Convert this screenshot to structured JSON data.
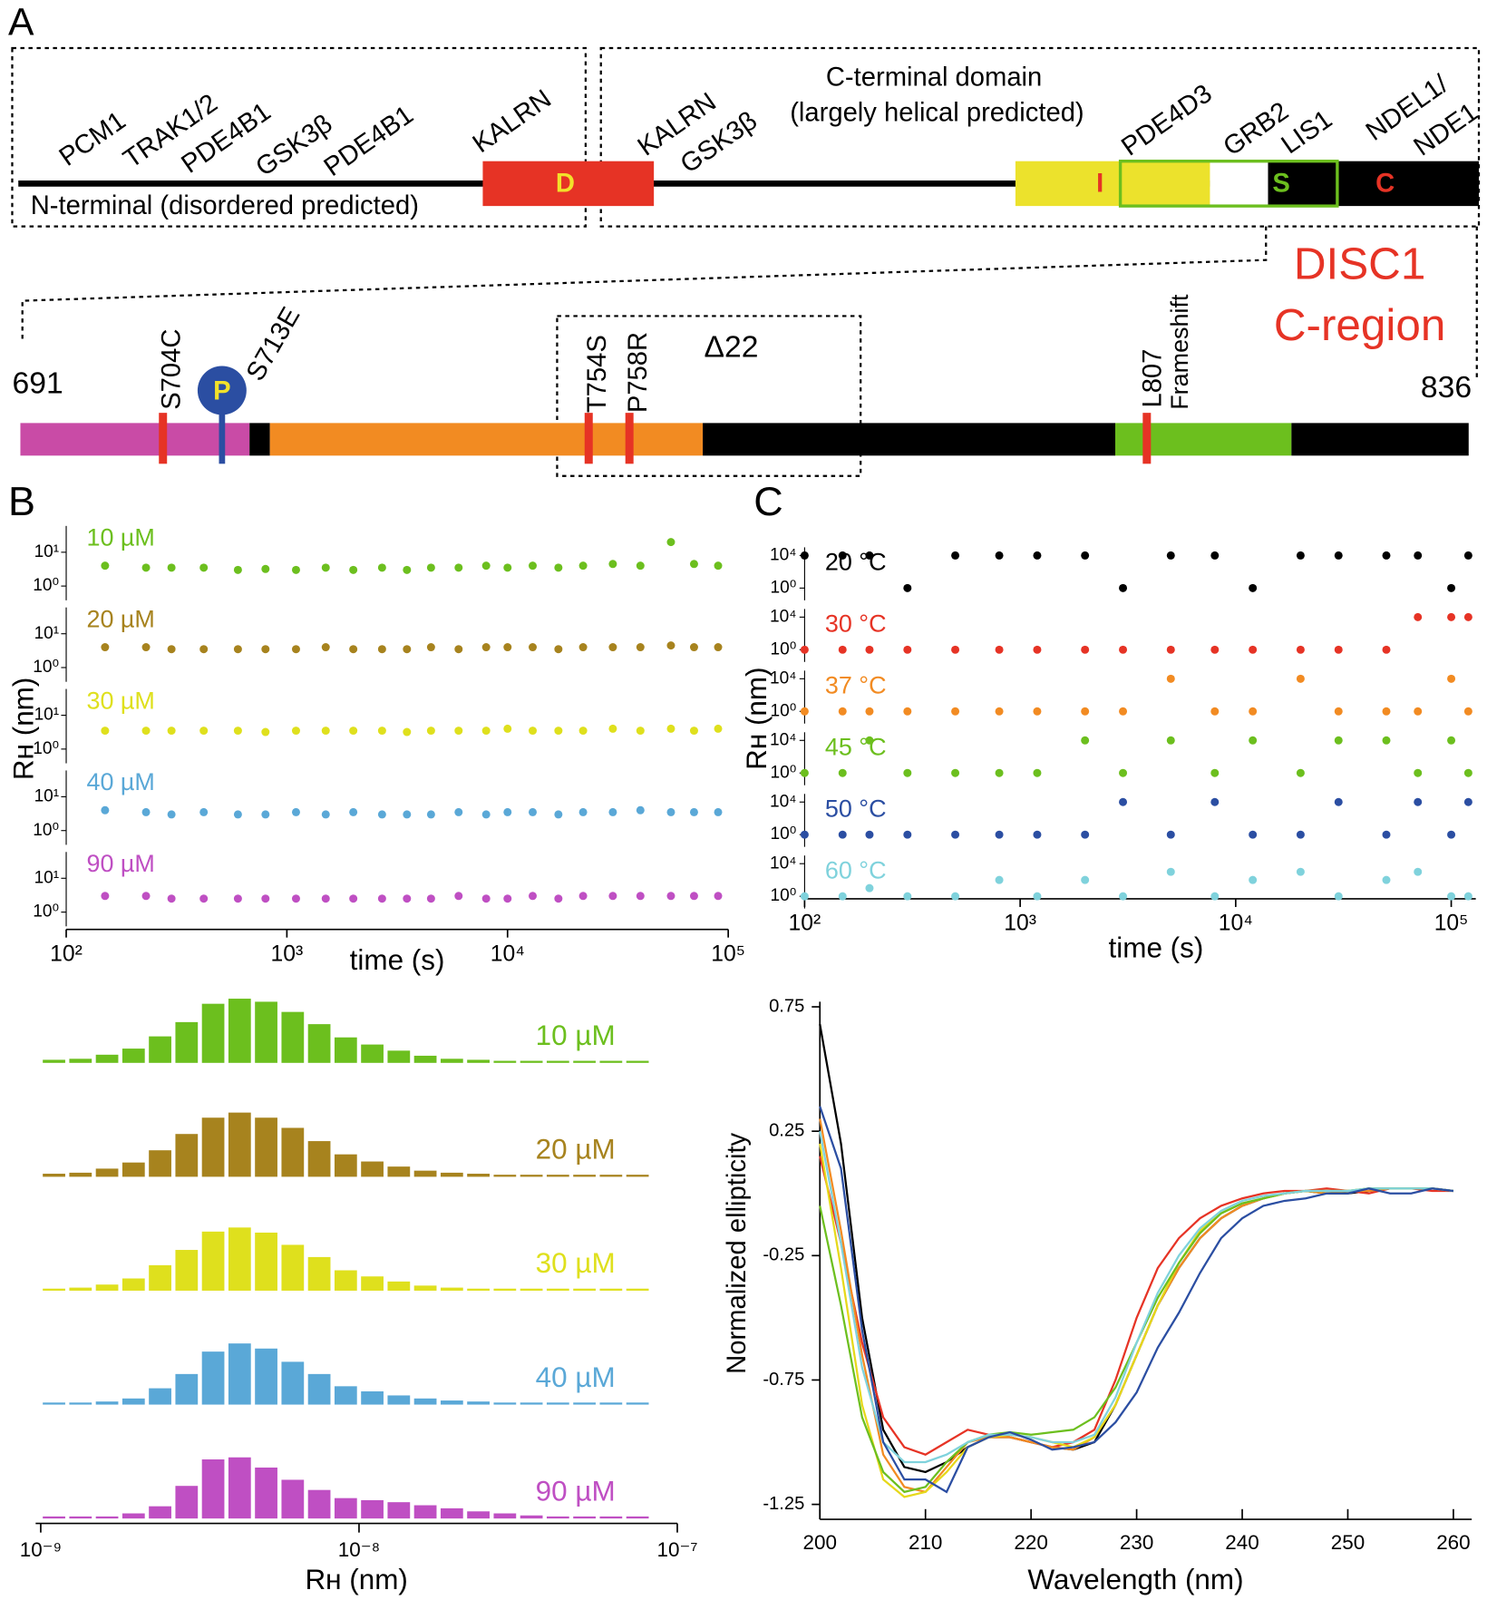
{
  "panel_a": {
    "label": "A",
    "interactors_n": [
      "PCM1",
      "TRAK1/2",
      "PDE4B1",
      "GSK3β",
      "PDE4B1",
      "KALRN"
    ],
    "n_terminal": "N-terminal (disordered predicted)",
    "domain_d": "D",
    "interactors_c": [
      "KALRN",
      "GSK3β",
      "PDE4D3",
      "GRB2",
      "LIS1",
      "NDEL1/",
      "NDE1"
    ],
    "c_terminal": [
      "C-terminal domain",
      "(largely helical predicted)"
    ],
    "domain_i": "I",
    "domain_s": "S",
    "domain_c": "C",
    "title": [
      "DISC1",
      "C-region"
    ],
    "start": "691",
    "end": "836",
    "mutations": [
      "S704C",
      "S713E",
      "T754S",
      "P758R",
      "L807",
      "Frameshift"
    ],
    "phospho": "P",
    "deletion": "Δ22"
  },
  "chart_data": [
    {
      "type": "scatter",
      "panel_label": "B",
      "xlabel": "time (s)",
      "ylabel": "Rʜ (nm)",
      "log_x": true,
      "log_y": true,
      "xlim": [
        100,
        100000
      ],
      "xticks": [
        {
          "value": 100,
          "label": "10²"
        },
        {
          "value": 1000,
          "label": "10³"
        },
        {
          "value": 10000,
          "label": "10⁴"
        },
        {
          "value": 100000,
          "label": "10⁵"
        }
      ],
      "ylim": [
        0.5,
        60
      ],
      "yticks": [
        {
          "value": 1,
          "label": "10⁰"
        },
        {
          "value": 10,
          "label": "10¹"
        }
      ],
      "x": [
        150,
        230,
        300,
        420,
        600,
        800,
        1100,
        1500,
        2000,
        2700,
        3500,
        4500,
        6000,
        8000,
        10000,
        13000,
        17000,
        22000,
        30000,
        40000,
        55000,
        70000,
        90000
      ],
      "series": [
        {
          "name": "10 µM",
          "color": "#6cbf1e",
          "values": [
            4,
            3.5,
            3.5,
            3.5,
            3,
            3.2,
            3,
            3.5,
            3,
            3.5,
            3,
            3.5,
            3.5,
            4,
            3.5,
            4,
            3.5,
            4,
            4.5,
            4,
            20,
            4.5,
            4
          ]
        },
        {
          "name": "20 µM",
          "color": "#a7831e",
          "values": [
            4,
            4,
            3.5,
            3.5,
            3.5,
            3.5,
            3.5,
            4,
            3.5,
            3.5,
            3.5,
            4,
            3.5,
            4,
            4,
            4,
            3.5,
            4,
            4,
            4,
            4.5,
            4,
            4
          ]
        },
        {
          "name": "30 µM",
          "color": "#dfe01d",
          "values": [
            3.5,
            3.5,
            3.5,
            3.5,
            3.5,
            3.2,
            3.5,
            3.5,
            3.5,
            3.5,
            3.2,
            3.5,
            3.5,
            3.5,
            4,
            3.5,
            3.5,
            3.5,
            4,
            3.5,
            4,
            3.5,
            4
          ]
        },
        {
          "name": "40 µM",
          "color": "#5aa8d7",
          "values": [
            4,
            3.5,
            3,
            3.5,
            3,
            3,
            3.5,
            3,
            3.5,
            3,
            3,
            3,
            3.5,
            3,
            3.5,
            3.5,
            3,
            3.5,
            3.5,
            4,
            3.5,
            3.5,
            3.5
          ]
        },
        {
          "name": "90 µM",
          "color": "#bf4fc3",
          "values": [
            3,
            3,
            2.5,
            2.5,
            2.5,
            2.5,
            2.5,
            2.5,
            2.5,
            2.5,
            2.5,
            2.5,
            3,
            2.5,
            2.5,
            3,
            2.5,
            3,
            3,
            3,
            3,
            3,
            3
          ]
        }
      ]
    },
    {
      "type": "scatter",
      "panel_label": "C",
      "xlabel": "time (s)",
      "ylabel": "Rʜ (nm)",
      "log_x": true,
      "log_y": true,
      "xlim": [
        100,
        130000
      ],
      "xticks": [
        {
          "value": 100,
          "label": "10²"
        },
        {
          "value": 1000,
          "label": "10³"
        },
        {
          "value": 10000,
          "label": "10⁴"
        },
        {
          "value": 100000,
          "label": "10⁵"
        }
      ],
      "ylim": [
        0.1,
        100000
      ],
      "yticks": [
        {
          "value": 1,
          "label": "10⁰"
        },
        {
          "value": 10000,
          "label": "10⁴"
        }
      ],
      "x": [
        100,
        150,
        200,
        300,
        500,
        800,
        1200,
        2000,
        3000,
        5000,
        8000,
        12000,
        20000,
        30000,
        50000,
        70000,
        100000,
        120000
      ],
      "series": [
        {
          "name": "20 °C",
          "color": "#000000",
          "values": [
            10000,
            10000,
            10000,
            1,
            10000,
            10000,
            10000,
            10000,
            1,
            10000,
            10000,
            1,
            10000,
            10000,
            10000,
            10000,
            1,
            10000
          ]
        },
        {
          "name": "30 °C",
          "color": "#e63325",
          "values": [
            1,
            1,
            1,
            1,
            1,
            1,
            1,
            1,
            1,
            1,
            1,
            1,
            1,
            1,
            1,
            10000,
            10000,
            10000
          ]
        },
        {
          "name": "37 °C",
          "color": "#f28b22",
          "values": [
            1,
            1,
            1,
            1,
            1,
            1,
            1,
            1,
            1,
            10000,
            1,
            1,
            10000,
            1,
            1,
            1,
            10000,
            1
          ]
        },
        {
          "name": "45 °C",
          "color": "#6cbf1e",
          "values": [
            1,
            1,
            10000,
            1,
            1,
            1,
            1,
            10000,
            1,
            10000,
            1,
            10000,
            1,
            10000,
            10000,
            1,
            10000,
            1
          ]
        },
        {
          "name": "50 °C",
          "color": "#2b4ea2",
          "values": [
            1,
            1,
            1,
            1,
            1,
            1,
            1,
            1,
            10000,
            1,
            10000,
            1,
            1,
            10000,
            1,
            10000,
            1,
            10000
          ]
        },
        {
          "name": "60 °C",
          "color": "#7fd2dc",
          "values": [
            1,
            1,
            10,
            1,
            1,
            100,
            1,
            100,
            1,
            1000,
            1,
            100,
            1000,
            1,
            100,
            1000,
            1,
            1
          ]
        }
      ]
    },
    {
      "type": "histogram",
      "xlabel": "Rʜ (nm)",
      "log_x": true,
      "xlim": [
        1e-09,
        1e-07
      ],
      "xticks": [
        {
          "value": 1e-09,
          "label": "10⁻⁹"
        },
        {
          "value": 1e-08,
          "label": "10⁻⁸"
        },
        {
          "value": 1e-07,
          "label": "10⁻⁷"
        }
      ],
      "bins": [
        1e-09,
        1.2115e-09,
        1.4678e-09,
        1.7783e-09,
        2.1544e-09,
        2.6102e-09,
        3.1623e-09,
        3.8312e-09,
        4.6416e-09,
        5.6234e-09,
        6.8129e-09,
        8.254e-09,
        1e-08,
        1.2115e-08,
        1.4678e-08,
        1.7783e-08,
        2.1544e-08,
        2.6102e-08,
        3.1623e-08,
        3.8312e-08,
        4.6416e-08,
        5.6234e-08,
        6.8129e-08,
        8.254e-08
      ],
      "series": [
        {
          "name": "10 µM",
          "color": "#6cbf1e",
          "values": [
            3,
            4,
            8,
            14,
            26,
            40,
            58,
            63,
            60,
            50,
            38,
            25,
            18,
            12,
            7,
            4,
            3,
            2,
            2,
            2,
            2,
            2,
            2
          ]
        },
        {
          "name": "20 µM",
          "color": "#a7831e",
          "values": [
            3,
            4,
            8,
            14,
            26,
            42,
            58,
            63,
            58,
            48,
            35,
            22,
            15,
            10,
            6,
            4,
            3,
            2,
            2,
            2,
            2,
            2,
            2
          ]
        },
        {
          "name": "30 µM",
          "color": "#dfe01d",
          "values": [
            2,
            3,
            6,
            12,
            25,
            40,
            58,
            62,
            57,
            45,
            33,
            20,
            14,
            9,
            5,
            3,
            2,
            2,
            2,
            2,
            2,
            2,
            2
          ]
        },
        {
          "name": "40 µM",
          "color": "#5aa8d7",
          "values": [
            2,
            2,
            3,
            6,
            16,
            30,
            52,
            60,
            55,
            42,
            30,
            18,
            13,
            9,
            6,
            4,
            3,
            2,
            2,
            2,
            2,
            2,
            2
          ]
        },
        {
          "name": "90 µM",
          "color": "#bf4fc3",
          "values": [
            2,
            2,
            2,
            5,
            12,
            32,
            58,
            60,
            50,
            38,
            28,
            20,
            18,
            16,
            13,
            10,
            7,
            5,
            3,
            2,
            2,
            2,
            2
          ]
        }
      ]
    },
    {
      "type": "line",
      "xlabel": "Wavelength (nm)",
      "ylabel": "Normalized ellipticity",
      "xlim": [
        200,
        260
      ],
      "xticks": [
        200,
        210,
        220,
        230,
        240,
        250,
        260
      ],
      "ylim": [
        -1.31,
        0.75
      ],
      "yticks": [
        -1.25,
        -0.75,
        -0.25,
        0.25,
        0.75
      ],
      "x": [
        200,
        202,
        204,
        206,
        208,
        210,
        212,
        214,
        216,
        218,
        220,
        222,
        224,
        226,
        228,
        230,
        232,
        234,
        236,
        238,
        240,
        242,
        244,
        246,
        248,
        250,
        252,
        254,
        256,
        258,
        260
      ],
      "series": [
        {
          "color": "#000000",
          "values": [
            0.68,
            0.2,
            -0.5,
            -0.95,
            -1.1,
            -1.12,
            -1.08,
            -1.02,
            -0.98,
            -0.98,
            -1.0,
            -1.02,
            -1.03,
            -1.0,
            -0.85,
            -0.65,
            -0.45,
            -0.3,
            -0.18,
            -0.1,
            -0.05,
            -0.02,
            0.0,
            0.01,
            0.0,
            0.0,
            0.01,
            0.02,
            0.02,
            0.02,
            0.01
          ]
        },
        {
          "color": "#e63325",
          "values": [
            0.15,
            -0.2,
            -0.6,
            -0.9,
            -1.02,
            -1.05,
            -1.0,
            -0.95,
            -0.97,
            -0.98,
            -1.0,
            -1.02,
            -1.0,
            -0.95,
            -0.75,
            -0.5,
            -0.3,
            -0.18,
            -0.1,
            -0.05,
            -0.02,
            0.0,
            0.01,
            0.01,
            0.02,
            0.01,
            0.0,
            0.02,
            0.02,
            0.01,
            0.01
          ]
        },
        {
          "color": "#f28b22",
          "values": [
            0.3,
            -0.15,
            -0.65,
            -1.05,
            -1.18,
            -1.2,
            -1.1,
            -1.0,
            -0.98,
            -0.98,
            -1.0,
            -1.02,
            -1.03,
            -0.98,
            -0.85,
            -0.65,
            -0.45,
            -0.3,
            -0.18,
            -0.1,
            -0.05,
            -0.02,
            0.0,
            0.01,
            0.0,
            0.01,
            0.01,
            0.02,
            0.02,
            0.02,
            0.01
          ]
        },
        {
          "color": "#e6d81a",
          "values": [
            0.2,
            -0.3,
            -0.85,
            -1.15,
            -1.22,
            -1.2,
            -1.12,
            -1.02,
            -0.98,
            -0.97,
            -0.98,
            -1.0,
            -1.02,
            -0.98,
            -0.85,
            -0.65,
            -0.45,
            -0.28,
            -0.15,
            -0.08,
            -0.04,
            -0.02,
            0.0,
            0.01,
            0.01,
            0.01,
            0.02,
            0.02,
            0.02,
            0.02,
            0.01
          ]
        },
        {
          "color": "#6cbf1e",
          "values": [
            -0.05,
            -0.45,
            -0.9,
            -1.12,
            -1.2,
            -1.18,
            -1.08,
            -1.0,
            -0.97,
            -0.96,
            -0.97,
            -0.96,
            -0.95,
            -0.9,
            -0.78,
            -0.6,
            -0.42,
            -0.28,
            -0.16,
            -0.08,
            -0.04,
            -0.02,
            0.0,
            0.01,
            0.01,
            0.01,
            0.02,
            0.02,
            0.02,
            0.02,
            0.01
          ]
        },
        {
          "color": "#7fd2dc",
          "values": [
            0.25,
            -0.2,
            -0.7,
            -1.0,
            -1.08,
            -1.08,
            -1.05,
            -1.0,
            -0.97,
            -0.97,
            -0.98,
            -1.0,
            -1.0,
            -0.97,
            -0.82,
            -0.6,
            -0.4,
            -0.25,
            -0.14,
            -0.07,
            -0.03,
            -0.01,
            0.0,
            0.01,
            0.01,
            0.01,
            0.02,
            0.02,
            0.02,
            0.02,
            0.01
          ]
        },
        {
          "color": "#2b4ea2",
          "values": [
            0.35,
            0.1,
            -0.55,
            -1.0,
            -1.15,
            -1.15,
            -1.2,
            -1.02,
            -0.98,
            -0.96,
            -0.99,
            -1.03,
            -1.02,
            -1.0,
            -0.92,
            -0.8,
            -0.62,
            -0.48,
            -0.32,
            -0.18,
            -0.1,
            -0.05,
            -0.03,
            -0.02,
            0.0,
            0.0,
            0.02,
            0.0,
            0.0,
            0.02,
            0.01
          ]
        }
      ]
    }
  ]
}
